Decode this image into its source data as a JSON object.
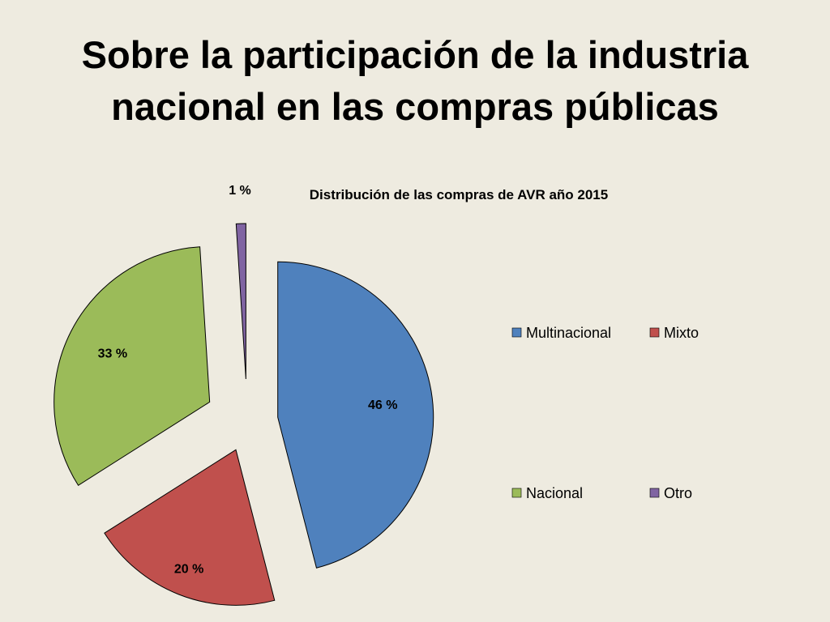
{
  "slide": {
    "title_lines": [
      "Sobre la participación de la industria",
      "nacional en las compras públicas"
    ]
  },
  "chart_data": {
    "type": "pie",
    "title": "Distribución de las compras de AVR año 2015",
    "categories": [
      "Multinacional",
      "Mixto",
      "Nacional",
      "Otro"
    ],
    "values": [
      46,
      20,
      33,
      1
    ],
    "labels": [
      "46 %",
      "20 %",
      "33 %",
      "1 %"
    ],
    "colors": [
      "#4F81BD",
      "#C0504D",
      "#9BBB59",
      "#8064A2"
    ],
    "exploded": true,
    "legend_position": "right"
  }
}
